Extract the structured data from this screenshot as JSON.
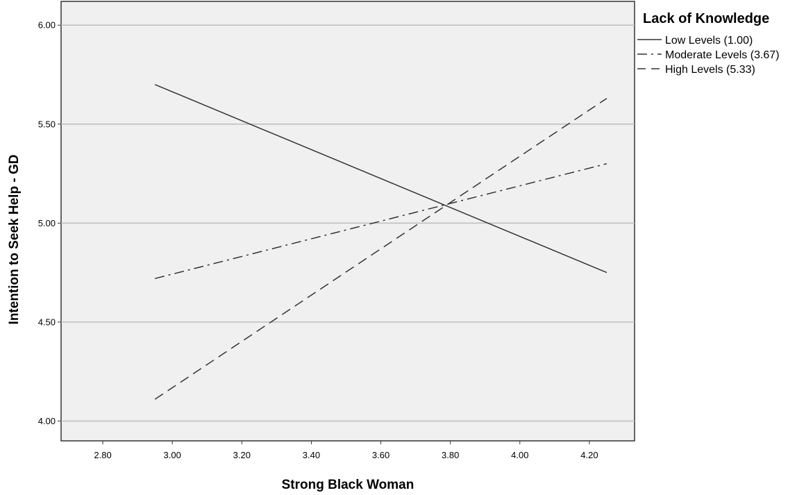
{
  "chart_data": {
    "type": "line",
    "xlabel": "Strong Black Woman",
    "ylabel": "Intention to Seek Help - GD",
    "xlim": [
      2.68,
      4.33
    ],
    "ylim": [
      3.9,
      6.12
    ],
    "x_ticks": [
      "2.80",
      "3.00",
      "3.20",
      "3.40",
      "3.60",
      "3.80",
      "4.00",
      "4.20"
    ],
    "y_ticks": [
      "4.00",
      "4.50",
      "5.00",
      "5.50",
      "6.00"
    ],
    "grid": "horizontal",
    "legend": {
      "title": "Lack of Knowledge",
      "placement": "right"
    },
    "series": [
      {
        "name": "Low Levels (1.00)",
        "dash": "solid",
        "x": [
          2.95,
          4.25
        ],
        "y": [
          5.7,
          4.75
        ]
      },
      {
        "name": "Moderate Levels (3.67)",
        "dash": "dashdot",
        "x": [
          2.95,
          4.25
        ],
        "y": [
          4.72,
          5.3
        ]
      },
      {
        "name": "High Levels (5.33)",
        "dash": "dashed",
        "x": [
          2.95,
          4.25
        ],
        "y": [
          4.11,
          5.63
        ]
      }
    ]
  },
  "colors": {
    "plot_background": "#f0f0f0",
    "gridline": "#bdbdbd",
    "line": "#333333"
  }
}
